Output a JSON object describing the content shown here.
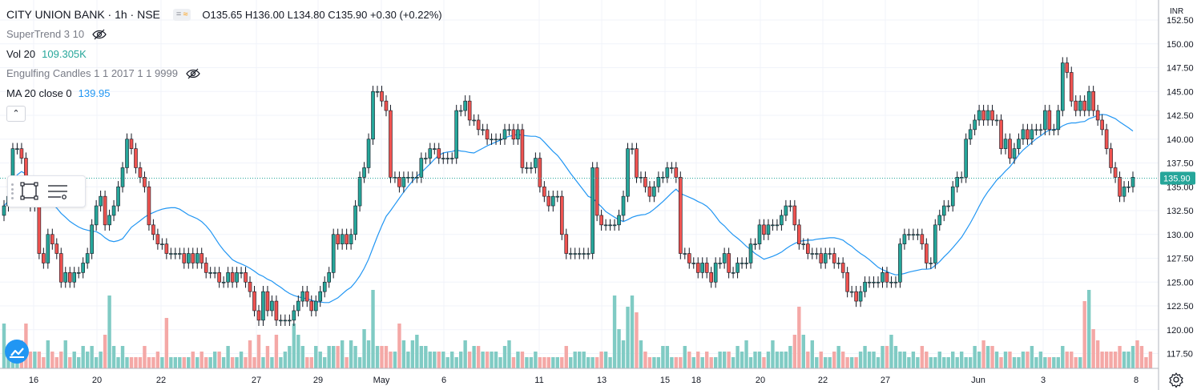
{
  "header": {
    "symbol_title": "CITY UNION BANK · 1h · NSE",
    "btn_minus": "=",
    "btn_wave": "≈",
    "ohlc": "O135.65 H136.00 L134.80 C135.90 +0.30 (+0.22%)"
  },
  "indicators": [
    {
      "name": "SuperTrend 3 10",
      "value": "",
      "hidden": true
    },
    {
      "name": "Vol 20",
      "value": "109.305K",
      "value_color": "#26a69a",
      "hidden": false
    },
    {
      "name": "Engulfing Candles 1 1 2017 1 1 9999",
      "value": "",
      "hidden": true
    },
    {
      "name": "MA 20 close 0",
      "value": "139.95",
      "value_color": "#2196f3",
      "hidden": false
    }
  ],
  "collapse_glyph": "⌃",
  "price_axis": {
    "currency": "INR",
    "last_price_label": "135.90",
    "ticks": [
      "152.50",
      "150.00",
      "147.50",
      "145.00",
      "142.50",
      "140.00",
      "137.50",
      "135.00",
      "132.50",
      "130.00",
      "127.50",
      "125.00",
      "122.50",
      "120.00",
      "117.50"
    ]
  },
  "time_axis": {
    "labels": [
      "16",
      "20",
      "22",
      "27",
      "29",
      "May",
      "6",
      "11",
      "13",
      "15",
      "18",
      "20",
      "22",
      "27",
      "Jun",
      "3",
      "8"
    ]
  },
  "colors": {
    "up": "#26a69a",
    "down": "#ef5350",
    "ma": "#2196f3",
    "grid": "#f0f3fa",
    "axis_text": "#787b86",
    "last_price_bg": "#26a69a"
  },
  "chart_data": {
    "type": "candlestick",
    "title": "CITY UNION BANK · 1h · NSE",
    "ylim": [
      116,
      153
    ],
    "last_price": 135.9,
    "ma_period": 20,
    "ma_last": 139.95,
    "volume_last": "109.305K",
    "series": [
      {
        "name": "Price",
        "closes": [
          133,
          134,
          139,
          139,
          138,
          135,
          133,
          133,
          128,
          127,
          130,
          129,
          128,
          125,
          126,
          125,
          126,
          126,
          127,
          128,
          131,
          133,
          134,
          131,
          132,
          133,
          135,
          137,
          140,
          139,
          137,
          136,
          135,
          131,
          130,
          129,
          129,
          128,
          128,
          128,
          128,
          127,
          128,
          127,
          128,
          127,
          126,
          126,
          126,
          125,
          125,
          126,
          125,
          126,
          126,
          125,
          124,
          122,
          121,
          124,
          122,
          123,
          121,
          121,
          121,
          121,
          122,
          123,
          124,
          123,
          122,
          123,
          124,
          125,
          126,
          130,
          129,
          130,
          129,
          130,
          133,
          136,
          137,
          140,
          145,
          145,
          144,
          143,
          136,
          136,
          135,
          136,
          136,
          136,
          136,
          138,
          138,
          139,
          139,
          138,
          138,
          138,
          138,
          143,
          143,
          144,
          142,
          142,
          141,
          141,
          140,
          140,
          140,
          140,
          141,
          141,
          140,
          141,
          137,
          137,
          137,
          138,
          135,
          134,
          133,
          134,
          134,
          130,
          128,
          128,
          128,
          128,
          128,
          128,
          137,
          132,
          131,
          131,
          131,
          131,
          132,
          134,
          139,
          139,
          136,
          136,
          135,
          134,
          135,
          136,
          136,
          137,
          137,
          136,
          128,
          128,
          127,
          127,
          126,
          127,
          126,
          125,
          127,
          127,
          128,
          126,
          126,
          127,
          127,
          127,
          129,
          129,
          131,
          130,
          131,
          131,
          131,
          132,
          133,
          133,
          131,
          129,
          129,
          128,
          128,
          128,
          127,
          128,
          128,
          127,
          127,
          126,
          124,
          124,
          123,
          124,
          125,
          125,
          125,
          125,
          126,
          125,
          125,
          125,
          129,
          130,
          130,
          130,
          130,
          129,
          127,
          127,
          131,
          132,
          133,
          133,
          135,
          136,
          136,
          140,
          141,
          142,
          143,
          142,
          143,
          142,
          142,
          139,
          140,
          138,
          139,
          140,
          141,
          140,
          141,
          141,
          141,
          143,
          141,
          141,
          143,
          148,
          147,
          144,
          143,
          144,
          143,
          145,
          143,
          142,
          141,
          139,
          137,
          136,
          134,
          135,
          135,
          136
        ]
      },
      {
        "name": "Vol",
        "values": [
          8,
          3,
          3,
          2,
          5,
          8,
          3,
          3,
          3,
          2,
          5,
          3,
          2,
          3,
          5,
          2,
          3,
          2,
          4,
          3,
          4,
          2,
          3,
          6,
          13,
          4,
          2,
          4,
          2,
          2,
          2,
          2,
          4,
          2,
          2,
          3,
          2,
          9,
          2,
          2,
          2,
          2,
          2,
          3,
          2,
          3,
          2,
          2,
          3,
          3,
          2,
          4,
          2,
          2,
          3,
          2,
          5,
          2,
          6,
          2,
          4,
          2,
          6,
          2,
          3,
          4,
          8,
          6,
          4,
          2,
          2,
          4,
          3,
          2,
          4,
          4,
          4,
          5,
          2,
          5,
          4,
          2,
          7,
          5,
          14,
          4,
          4,
          4,
          3,
          3,
          8,
          5,
          3,
          5,
          6,
          4,
          4,
          3,
          3,
          3,
          3,
          2,
          3,
          2,
          3,
          5,
          3,
          4,
          4,
          3,
          3,
          3,
          3,
          2,
          4,
          5,
          2,
          3,
          3,
          2,
          2,
          3,
          2,
          2,
          2,
          2,
          2,
          2,
          4,
          2,
          3,
          3,
          3,
          2,
          2,
          2,
          3,
          3,
          2,
          13,
          7,
          5,
          11,
          13,
          10,
          5,
          3,
          2,
          2,
          2,
          4,
          4,
          2,
          2,
          2,
          4,
          3,
          2,
          3,
          2,
          3,
          2,
          2,
          3,
          3,
          3,
          2,
          4,
          3,
          5,
          2,
          3,
          3,
          2,
          3,
          5,
          3,
          3,
          3,
          4,
          6,
          11,
          6,
          3,
          5,
          2,
          3,
          2,
          2,
          3,
          4,
          3,
          2,
          2,
          2,
          3,
          4,
          3,
          3,
          2,
          4,
          4,
          6,
          4,
          3,
          3,
          2,
          3,
          2,
          4,
          3,
          2,
          2,
          3,
          2,
          2,
          3,
          2,
          3,
          2,
          2,
          4,
          3,
          5,
          4,
          4,
          3,
          2,
          3,
          3,
          2,
          2,
          3,
          3,
          4,
          2,
          3,
          2,
          2,
          2,
          2,
          4,
          3,
          3,
          2,
          2,
          12,
          14,
          7,
          5,
          3,
          3,
          3,
          3,
          4,
          3,
          3,
          4,
          5,
          4,
          2,
          3
        ]
      }
    ]
  }
}
